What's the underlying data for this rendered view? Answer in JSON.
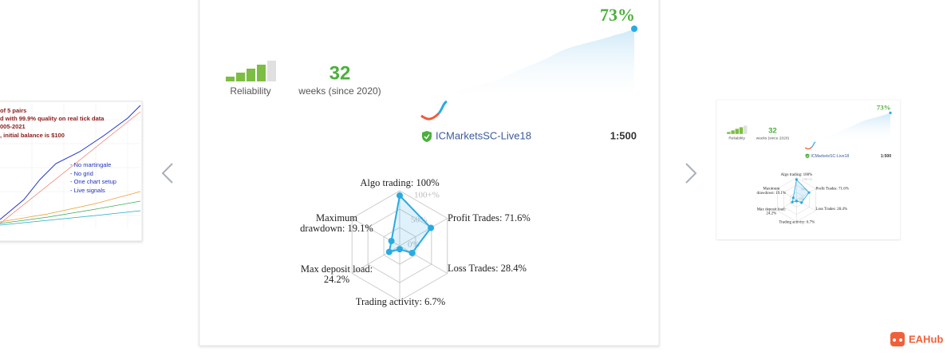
{
  "left_card": {
    "lines": [
      "of 5 pairs",
      "d with 99.9% quality on real tick data",
      "005-2021",
      ", initial balance is $100"
    ],
    "features": [
      "- No martingale",
      "- No grid",
      "- One chart setup",
      "- Live signals"
    ]
  },
  "signal_card": {
    "reliability_label": "Reliability",
    "weeks": "32",
    "weeks_label": "weeks (since 2020)",
    "growth": "73%",
    "account": "ICMarketsSC-Live18",
    "leverage": "1:500",
    "radar": {
      "type": "radar",
      "labels": [
        [
          "Algo trading: 100%"
        ],
        [
          "Profit Trades: 71.6%"
        ],
        [
          "Loss Trades: 28.4%"
        ],
        [
          "Trading activity: 6.7%"
        ],
        [
          "Max deposit load:",
          "24.2%"
        ],
        [
          "Maximum",
          "drawdown: 19.1%"
        ]
      ],
      "values": [
        100,
        71.6,
        28.4,
        6.7,
        24.2,
        19.1
      ],
      "ring_labels": [
        "0%",
        "50%",
        "100+%"
      ]
    }
  },
  "brand": "EAHub"
}
